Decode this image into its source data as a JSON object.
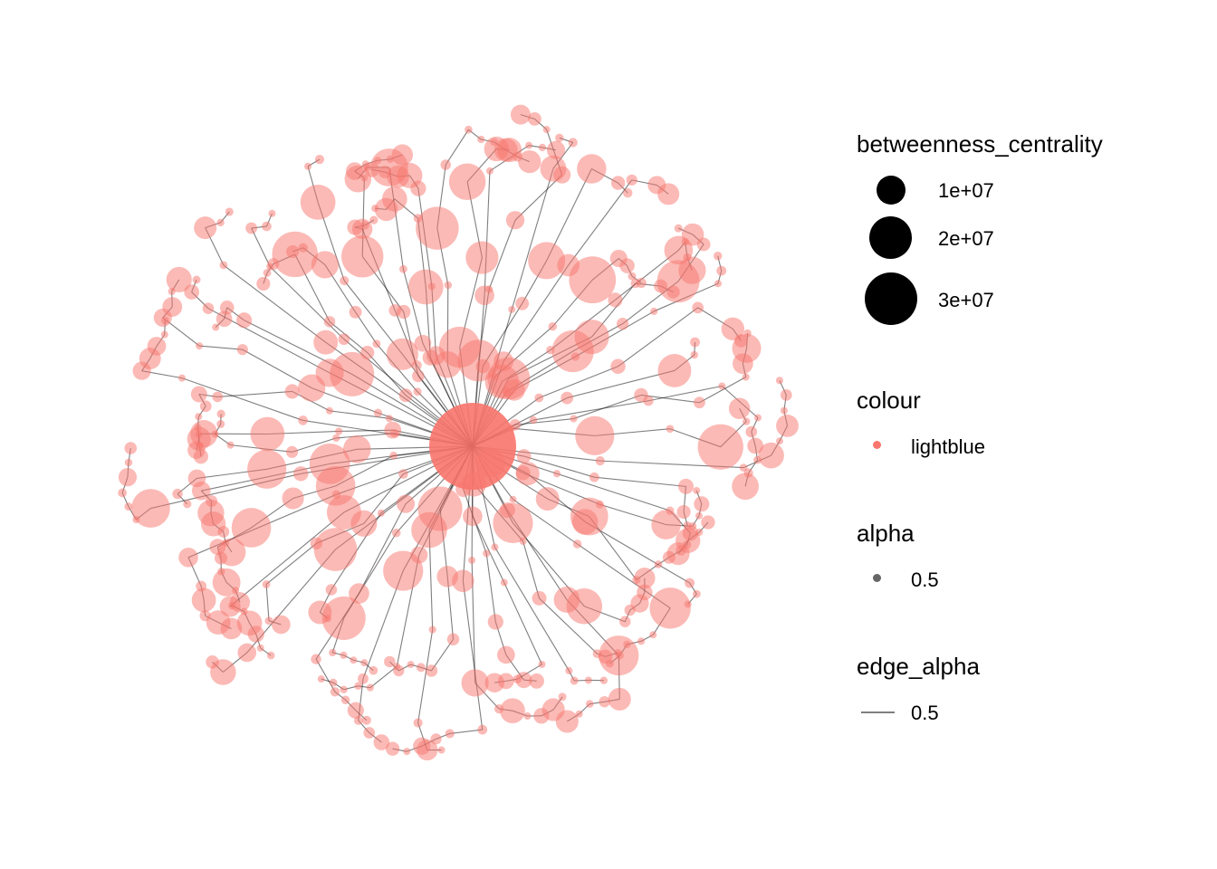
{
  "chart_data": {
    "type": "network",
    "layout": "radial force-directed graph with one central hub node",
    "node_colour": "#F8766D",
    "node_alpha": 0.5,
    "edge_colour": "#000000",
    "edge_alpha": 0.5,
    "size_variable": "betweenness_centrality"
  },
  "legend": {
    "size": {
      "title": "betweenness_centrality",
      "breaks": [
        {
          "value": 10000000,
          "label": "1e+07"
        },
        {
          "value": 20000000,
          "label": "2e+07"
        },
        {
          "value": 30000000,
          "label": "3e+07"
        }
      ]
    },
    "colour": {
      "title": "colour",
      "label": "lightblue",
      "color": "#F8766D"
    },
    "alpha": {
      "title": "alpha",
      "label": "0.5",
      "color": "#666666"
    },
    "edge_alpha": {
      "title": "edge_alpha",
      "label": "0.5",
      "color": "#7f7f7f"
    }
  }
}
